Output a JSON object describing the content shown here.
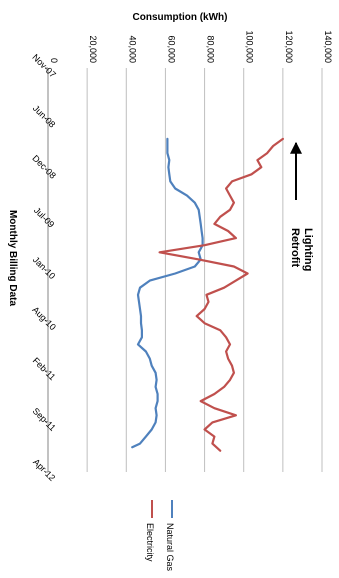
{
  "chart_data": {
    "type": "line",
    "orientation": "rotated-90-clockwise",
    "title": "",
    "xlabel": "Monthly Billing Data",
    "ylabel": "Consumption (kWh)",
    "ylim": [
      0,
      140000
    ],
    "yticks": [
      0,
      20000,
      40000,
      60000,
      80000,
      100000,
      120000,
      140000
    ],
    "ytick_labels": [
      "0",
      "20,000",
      "40,000",
      "60,000",
      "80,000",
      "100,000",
      "120,000",
      "140,000"
    ],
    "xtick_labels": [
      "Nov-07",
      "Jun-08",
      "Dec-08",
      "Jul-09",
      "Jan-10",
      "Aug-10",
      "Feb-11",
      "Sep-11",
      "Apr-12"
    ],
    "grid": true,
    "legend_position": "bottom",
    "annotation": {
      "text_lines": [
        "Lighting",
        "Retrofit"
      ],
      "arrow": "points-earlier",
      "near": "Nov-08"
    },
    "series": [
      {
        "name": "Natural Gas",
        "color": "#4f81bd",
        "points": [
          [
            10.0,
            61000
          ],
          [
            12.0,
            61000
          ],
          [
            13.0,
            62000
          ],
          [
            14.0,
            61500
          ],
          [
            15.0,
            62000
          ],
          [
            16.0,
            62500
          ],
          [
            17.0,
            65000
          ],
          [
            18.0,
            71000
          ],
          [
            19.0,
            75000
          ],
          [
            20.0,
            77000
          ],
          [
            21.0,
            77500
          ],
          [
            22.0,
            78000
          ],
          [
            23.0,
            78500
          ],
          [
            24.0,
            79000
          ],
          [
            25.0,
            79000
          ],
          [
            26.0,
            77000
          ],
          [
            27.0,
            78000
          ],
          [
            28.0,
            75000
          ],
          [
            29.0,
            65000
          ],
          [
            30.0,
            52000
          ],
          [
            31.0,
            47000
          ],
          [
            32.0,
            46000
          ],
          [
            33.0,
            46500
          ],
          [
            34.0,
            47000
          ],
          [
            35.0,
            47500
          ],
          [
            36.0,
            47500
          ],
          [
            37.0,
            48000
          ],
          [
            38.0,
            48000
          ],
          [
            39.0,
            46000
          ],
          [
            40.0,
            50000
          ],
          [
            41.0,
            52000
          ],
          [
            42.0,
            53000
          ],
          [
            43.0,
            55000
          ],
          [
            44.0,
            55500
          ],
          [
            45.0,
            55000
          ],
          [
            46.0,
            56000
          ],
          [
            47.0,
            56000
          ],
          [
            48.0,
            55000
          ],
          [
            49.0,
            55500
          ],
          [
            50.0,
            55000
          ],
          [
            51.0,
            53000
          ],
          [
            52.0,
            50000
          ],
          [
            53.0,
            47000
          ],
          [
            53.5,
            43000
          ]
        ]
      },
      {
        "name": "Electricity",
        "color": "#c0504d",
        "points": [
          [
            10.0,
            120000
          ],
          [
            11.0,
            115000
          ],
          [
            12.0,
            112000
          ],
          [
            13.0,
            107000
          ],
          [
            14.0,
            109000
          ],
          [
            15.0,
            104000
          ],
          [
            16.0,
            94000
          ],
          [
            17.0,
            91000
          ],
          [
            18.0,
            93000
          ],
          [
            19.0,
            95000
          ],
          [
            20.0,
            93000
          ],
          [
            21.0,
            88000
          ],
          [
            22.0,
            85000
          ],
          [
            23.0,
            92000
          ],
          [
            24.0,
            96000
          ],
          [
            25.0,
            80000
          ],
          [
            26.0,
            57000
          ],
          [
            27.0,
            77000
          ],
          [
            28.0,
            95000
          ],
          [
            29.0,
            102000
          ],
          [
            30.0,
            96000
          ],
          [
            31.0,
            90000
          ],
          [
            32.0,
            81000
          ],
          [
            33.0,
            82000
          ],
          [
            34.0,
            80000
          ],
          [
            35.0,
            76000
          ],
          [
            36.0,
            80000
          ],
          [
            37.0,
            88000
          ],
          [
            38.0,
            91000
          ],
          [
            39.0,
            93000
          ],
          [
            40.0,
            91000
          ],
          [
            41.0,
            92000
          ],
          [
            42.0,
            94000
          ],
          [
            43.0,
            95000
          ],
          [
            44.0,
            93000
          ],
          [
            45.0,
            90000
          ],
          [
            46.0,
            85000
          ],
          [
            47.0,
            78000
          ],
          [
            48.0,
            85000
          ],
          [
            49.0,
            96000
          ],
          [
            50.0,
            84000
          ],
          [
            51.0,
            80000
          ],
          [
            52.0,
            85000
          ],
          [
            53.0,
            84000
          ],
          [
            54.0,
            88000
          ]
        ]
      }
    ]
  }
}
